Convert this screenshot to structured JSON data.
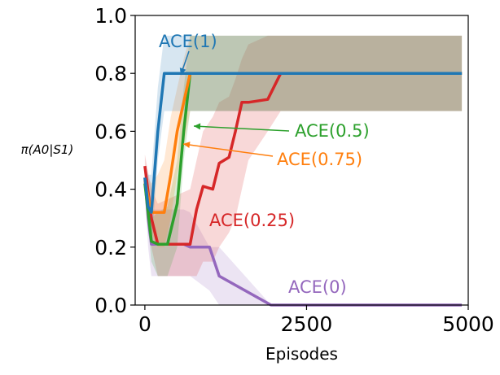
{
  "chart_data": {
    "type": "line",
    "title": "",
    "xlabel": "Episodes",
    "ylabel": "π(A0|S1)",
    "xlim": [
      -150,
      5000
    ],
    "ylim": [
      0.0,
      1.0
    ],
    "xticks": [
      0,
      2500,
      5000
    ],
    "xtick_labels": [
      "0",
      "2500",
      "5000"
    ],
    "yticks": [
      0.0,
      0.2,
      0.4,
      0.6,
      0.8,
      1.0
    ],
    "ytick_labels": [
      "0.0",
      "0.2",
      "0.4",
      "0.6",
      "0.8",
      "1.0"
    ],
    "series": [
      {
        "name": "ACE(0)",
        "label": "ACE(0)",
        "color": "#9467bd",
        "x": [
          0,
          50,
          100,
          600,
          700,
          1000,
          1150,
          1950,
          4900
        ],
        "y": [
          0.44,
          0.3,
          0.21,
          0.21,
          0.2,
          0.2,
          0.1,
          0.0,
          0.0
        ],
        "band_low": [
          0.4,
          0.2,
          0.1,
          0.1,
          0.1,
          0.05,
          0.0,
          0.0,
          0.0
        ],
        "band_high": [
          0.47,
          0.4,
          0.33,
          0.33,
          0.32,
          0.2,
          0.2,
          0.0,
          0.0
        ]
      },
      {
        "name": "ACE(0.25)",
        "label": "ACE(0.25)",
        "color": "#d62728",
        "x": [
          0,
          100,
          200,
          700,
          800,
          900,
          1050,
          1150,
          1300,
          1400,
          1500,
          1600,
          1900,
          2100,
          4900
        ],
        "y": [
          0.48,
          0.3,
          0.21,
          0.21,
          0.33,
          0.41,
          0.4,
          0.49,
          0.51,
          0.6,
          0.7,
          0.7,
          0.71,
          0.8,
          0.8
        ],
        "band_low": [
          0.45,
          0.2,
          0.1,
          0.1,
          0.1,
          0.15,
          0.15,
          0.2,
          0.25,
          0.3,
          0.4,
          0.5,
          0.6,
          0.67,
          0.67
        ],
        "band_high": [
          0.52,
          0.4,
          0.35,
          0.4,
          0.5,
          0.6,
          0.65,
          0.7,
          0.72,
          0.78,
          0.85,
          0.9,
          0.93,
          0.93,
          0.93
        ]
      },
      {
        "name": "ACE(0.5)",
        "label": "ACE(0.5)",
        "color": "#2ca02c",
        "x": [
          0,
          100,
          200,
          350,
          500,
          600,
          700,
          4900
        ],
        "y": [
          0.42,
          0.22,
          0.21,
          0.21,
          0.35,
          0.6,
          0.8,
          0.8
        ],
        "band_low": [
          0.4,
          0.15,
          0.1,
          0.1,
          0.2,
          0.5,
          0.67,
          0.67
        ],
        "band_high": [
          0.45,
          0.3,
          0.32,
          0.34,
          0.5,
          0.75,
          0.93,
          0.93
        ]
      },
      {
        "name": "ACE(0.75)",
        "label": "ACE(0.75)",
        "color": "#ff7f0e",
        "x": [
          0,
          100,
          200,
          300,
          400,
          500,
          600,
          700,
          4900
        ],
        "y": [
          0.43,
          0.32,
          0.32,
          0.32,
          0.45,
          0.6,
          0.7,
          0.8,
          0.8
        ],
        "band_low": [
          0.4,
          0.25,
          0.2,
          0.2,
          0.3,
          0.45,
          0.55,
          0.67,
          0.67
        ],
        "band_high": [
          0.46,
          0.42,
          0.45,
          0.5,
          0.65,
          0.75,
          0.85,
          0.93,
          0.93
        ]
      },
      {
        "name": "ACE(1)",
        "label": "ACE(1)",
        "color": "#1f77b4",
        "x": [
          0,
          50,
          100,
          200,
          300,
          4900
        ],
        "y": [
          0.44,
          0.34,
          0.32,
          0.6,
          0.8,
          0.8
        ],
        "band_low": [
          0.4,
          0.25,
          0.2,
          0.5,
          0.67,
          0.67
        ],
        "band_high": [
          0.48,
          0.45,
          0.45,
          0.75,
          0.93,
          0.93
        ]
      }
    ],
    "annotations": [
      {
        "text": "ACE(1)",
        "color": "#1f77b4"
      },
      {
        "text": "ACE(0.5)",
        "color": "#2ca02c"
      },
      {
        "text": "ACE(0.75)",
        "color": "#ff7f0e"
      },
      {
        "text": "ACE(0.25)",
        "color": "#d62728"
      },
      {
        "text": "ACE(0)",
        "color": "#9467bd"
      }
    ]
  }
}
